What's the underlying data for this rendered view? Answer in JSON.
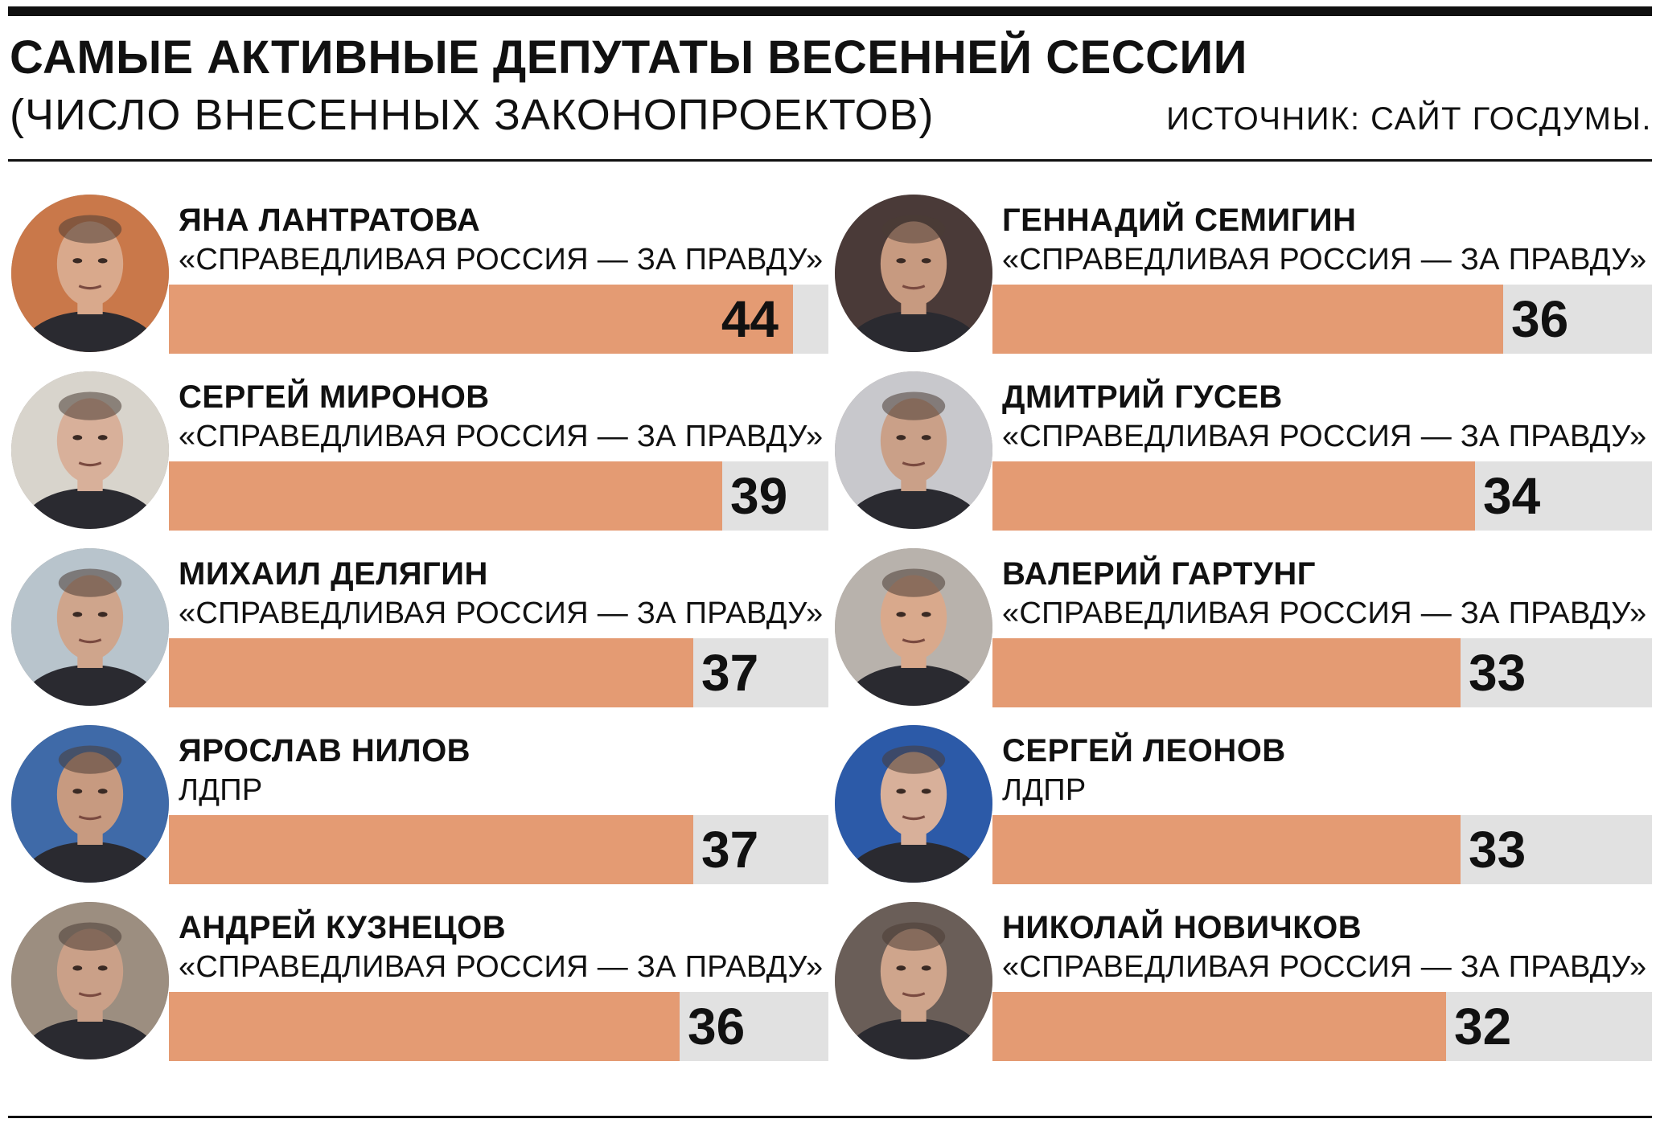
{
  "header": {
    "title": "САМЫЕ АКТИВНЫЕ ДЕПУТАТЫ ВЕСЕННЕЙ СЕССИИ",
    "subtitle": "(ЧИСЛО ВНЕСЕННЫХ ЗАКОНОПРОЕКТОВ)",
    "source": "ИСТОЧНИК: САЙТ ГОСДУМЫ."
  },
  "colors": {
    "bar": "#e49b73",
    "track": "#e1e1e1",
    "text": "#111111"
  },
  "chart_data": {
    "type": "bar",
    "title": "САМЫЕ АКТИВНЫЕ ДЕПУТАТЫ ВЕСЕННЕЙ СЕССИИ",
    "subtitle": "(ЧИСЛО ВНЕСЕННЫХ ЗАКОНОПРОЕКТОВ)",
    "xlim": [
      0,
      44
    ],
    "items": [
      {
        "name": "ЯНА ЛАНТРАТОВА",
        "party": "«СПРАВЕДЛИВАЯ РОССИЯ — ЗА ПРАВДУ»",
        "value": 44,
        "value_label": "44"
      },
      {
        "name": "ГЕННАДИЙ СЕМИГИН",
        "party": "«СПРАВЕДЛИВАЯ РОССИЯ — ЗА ПРАВДУ»",
        "value": 36,
        "value_label": "36"
      },
      {
        "name": "СЕРГЕЙ МИРОНОВ",
        "party": "«СПРАВЕДЛИВАЯ РОССИЯ — ЗА ПРАВДУ»",
        "value": 39,
        "value_label": "39"
      },
      {
        "name": "ДМИТРИЙ ГУСЕВ",
        "party": "«СПРАВЕДЛИВАЯ РОССИЯ — ЗА ПРАВДУ»",
        "value": 34,
        "value_label": "34"
      },
      {
        "name": "МИХАИЛ ДЕЛЯГИН",
        "party": "«СПРАВЕДЛИВАЯ РОССИЯ — ЗА ПРАВДУ»",
        "value": 37,
        "value_label": "37"
      },
      {
        "name": "ВАЛЕРИЙ ГАРТУНГ",
        "party": "«СПРАВЕДЛИВАЯ РОССИЯ — ЗА ПРАВДУ»",
        "value": 33,
        "value_label": "33"
      },
      {
        "name": "ЯРОСЛАВ НИЛОВ",
        "party": "ЛДПР",
        "value": 37,
        "value_label": "37"
      },
      {
        "name": "СЕРГЕЙ ЛЕОНОВ",
        "party": "ЛДПР",
        "value": 33,
        "value_label": "33"
      },
      {
        "name": "АНДРЕЙ КУЗНЕЦОВ",
        "party": "«СПРАВЕДЛИВАЯ РОССИЯ — ЗА ПРАВДУ»",
        "value": 36,
        "value_label": "36"
      },
      {
        "name": "НИКОЛАЙ НОВИЧКОВ",
        "party": "«СПРАВЕДЛИВАЯ РОССИЯ — ЗА ПРАВДУ»",
        "value": 32,
        "value_label": "32"
      }
    ]
  }
}
